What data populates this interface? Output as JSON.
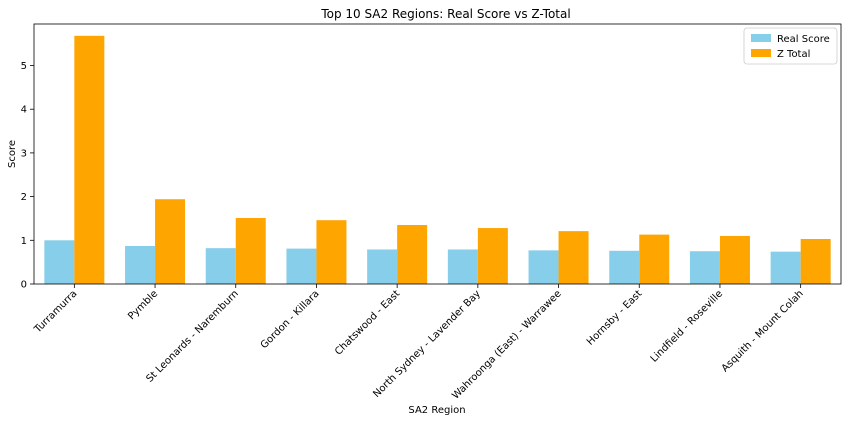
{
  "chart_data": {
    "type": "bar",
    "title": "Top 10 SA2 Regions: Real Score vs Z-Total",
    "xlabel": "SA2 Region",
    "ylabel": "Score",
    "ylim": [
      0,
      5.95
    ],
    "yticks": [
      0,
      1,
      2,
      3,
      4,
      5
    ],
    "grid": false,
    "legend_position": "top-right",
    "categories": [
      "Turramurra",
      "Pymble",
      "St Leonards - Naremburn",
      "Gordon - Killara",
      "Chatswood - East",
      "North Sydney - Lavender Bay",
      "Wahroonga (East) - Warrawee",
      "Hornsby - East",
      "Lindfield - Roseville",
      "Asquith - Mount Colah"
    ],
    "series": [
      {
        "name": "Real Score",
        "color": "#87ceeb",
        "values": [
          1.0,
          0.87,
          0.82,
          0.81,
          0.79,
          0.79,
          0.77,
          0.76,
          0.75,
          0.74
        ]
      },
      {
        "name": "Z Total",
        "color": "#ffa500",
        "values": [
          5.68,
          1.94,
          1.51,
          1.46,
          1.35,
          1.28,
          1.21,
          1.13,
          1.1,
          1.03
        ]
      }
    ]
  }
}
